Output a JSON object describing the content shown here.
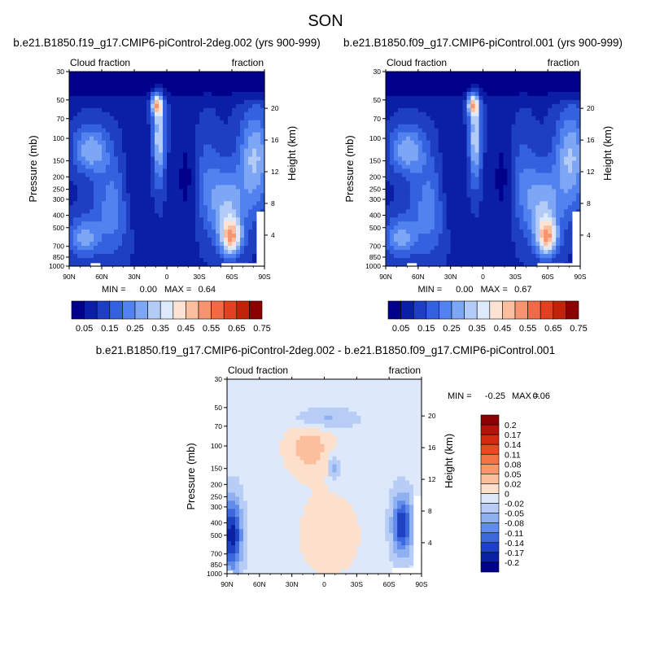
{
  "page_title": "SON",
  "chart_data": [
    {
      "type": "heatmap",
      "id": "panel-a",
      "title": "b.e21.B1850.f19_g17.CMIP6-piControl-2deg.002 (yrs 900-999)",
      "left_label": "Cloud fraction",
      "right_label": "fraction",
      "ylabel": "Pressure (mb)",
      "y2label": "Height (km)",
      "x_ticks": [
        "90N",
        "60N",
        "30N",
        "0",
        "30S",
        "60S",
        "90S"
      ],
      "y_ticks": [
        "30",
        "50",
        "70",
        "100",
        "150",
        "200",
        "250",
        "300",
        "400",
        "500",
        "700",
        "850",
        "1000"
      ],
      "y2_ticks": [
        "20",
        "16",
        "12",
        "8",
        "4"
      ],
      "min_label": "MIN =",
      "min_value": "0.00",
      "max_label": "MAX =",
      "max_value": "0.64",
      "min": 0.0,
      "max": 0.64
    },
    {
      "type": "heatmap",
      "id": "panel-b",
      "title": "b.e21.B1850.f09_g17.CMIP6-piControl.001 (yrs 900-999)",
      "left_label": "Cloud fraction",
      "right_label": "fraction",
      "ylabel": "Pressure (mb)",
      "y2label": "Height (km)",
      "x_ticks": [
        "90N",
        "60N",
        "30N",
        "0",
        "30S",
        "60S",
        "90S"
      ],
      "y_ticks": [
        "30",
        "50",
        "70",
        "100",
        "150",
        "200",
        "250",
        "300",
        "400",
        "500",
        "700",
        "850",
        "1000"
      ],
      "y2_ticks": [
        "20",
        "16",
        "12",
        "8",
        "4"
      ],
      "min_label": "MIN =",
      "min_value": "0.00",
      "max_label": "MAX =",
      "max_value": "0.67",
      "min": 0.0,
      "max": 0.67
    },
    {
      "type": "heatmap",
      "id": "panel-diff",
      "title": "b.e21.B1850.f19_g17.CMIP6-piControl-2deg.002 - b.e21.B1850.f09_g17.CMIP6-piControl.001",
      "left_label": "Cloud fraction",
      "right_label": "fraction",
      "ylabel": "Pressure (mb)",
      "y2label": "Height (km)",
      "x_ticks": [
        "90N",
        "60N",
        "30N",
        "0",
        "30S",
        "60S",
        "90S"
      ],
      "y_ticks": [
        "30",
        "50",
        "70",
        "100",
        "150",
        "200",
        "250",
        "300",
        "400",
        "500",
        "700",
        "850",
        "1000"
      ],
      "y2_ticks": [
        "20",
        "16",
        "12",
        "8",
        "4"
      ],
      "min_label": "MIN =",
      "min_value": "-0.25",
      "max_label": "MAX =",
      "max_value": "0.06",
      "min": -0.25,
      "max": 0.06
    }
  ],
  "colorbar_abs": {
    "labels": [
      "0.05",
      "0.15",
      "0.25",
      "0.35",
      "0.45",
      "0.55",
      "0.65",
      "0.75"
    ],
    "colors": [
      "#00008b",
      "#0a1fa6",
      "#1f3fc2",
      "#3461de",
      "#5282f0",
      "#7da6f5",
      "#b3cbf7",
      "#ddeafc",
      "#fde3d4",
      "#fbbf9f",
      "#f79470",
      "#f06a48",
      "#e2401e",
      "#c12308",
      "#8b0000"
    ]
  },
  "colorbar_diff": {
    "labels": [
      "0.2",
      "0.17",
      "0.14",
      "0.11",
      "0.08",
      "0.05",
      "0.02",
      "0",
      "-0.02",
      "-0.05",
      "-0.08",
      "-0.11",
      "-0.14",
      "-0.17",
      "-0.2"
    ],
    "colors": [
      "#8b0000",
      "#b5130a",
      "#d42a0f",
      "#ea4a22",
      "#f47243",
      "#f9986e",
      "#fcbf9e",
      "#fde0cc",
      "#dde9fb",
      "#b7cdf6",
      "#8fb0f1",
      "#628ce9",
      "#3c68dc",
      "#1e43c2",
      "#0a22a0",
      "#00008b"
    ]
  }
}
